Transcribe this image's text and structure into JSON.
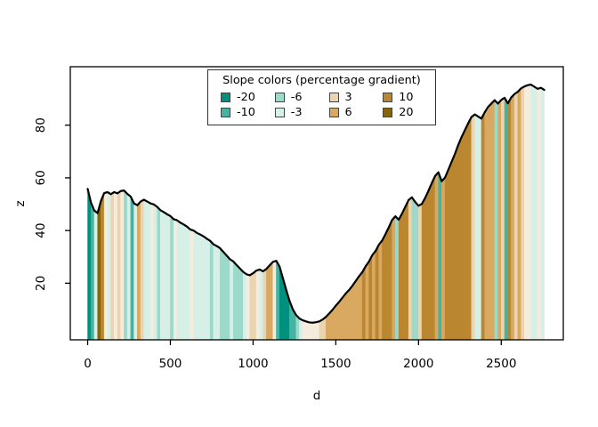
{
  "axes": {
    "x": {
      "label": "d",
      "ticks": [
        "0",
        "500",
        "1000",
        "1500",
        "2000",
        "2500"
      ],
      "tick_values": [
        0,
        500,
        1000,
        1500,
        2000,
        2500
      ]
    },
    "y": {
      "label": "z",
      "ticks": [
        "20",
        "40",
        "60",
        "80"
      ],
      "tick_values": [
        20,
        40,
        60,
        80
      ]
    }
  },
  "legend": {
    "title": "Slope colors (percentage gradient)",
    "entries": [
      {
        "label": "-20",
        "color": "#00917E"
      },
      {
        "label": "-10",
        "color": "#45B3A2"
      },
      {
        "label": "-6",
        "color": "#9BDACB"
      },
      {
        "label": "-3",
        "color": "#D6F0E8"
      },
      {
        "label": "3",
        "color": "#EAD5B0"
      },
      {
        "label": "6",
        "color": "#D9A861"
      },
      {
        "label": "10",
        "color": "#BA8730"
      },
      {
        "label": "20",
        "color": "#8A6508"
      }
    ]
  },
  "chart_data": {
    "type": "area",
    "title": "",
    "xlabel": "d",
    "ylabel": "z",
    "xlim": [
      -105,
      2875
    ],
    "ylim": [
      -1.5,
      102.2
    ],
    "grid": false,
    "legend_position": "top-center-inside",
    "line_color": "#000000",
    "frame_color": "#000000",
    "slope_breaks_percent": [
      -20,
      -10,
      -6,
      -3,
      3,
      6,
      10,
      20
    ],
    "palette": [
      "#00917E",
      "#45B3A2",
      "#9BDACB",
      "#D6F0E8",
      "#F6ECDE",
      "#EAD5B0",
      "#D9A861",
      "#BA8730",
      "#8A6508"
    ],
    "x": [
      0,
      20,
      40,
      60,
      80,
      100,
      120,
      140,
      160,
      180,
      200,
      220,
      240,
      260,
      280,
      300,
      320,
      340,
      360,
      380,
      400,
      420,
      440,
      460,
      480,
      500,
      520,
      540,
      560,
      580,
      600,
      620,
      640,
      660,
      680,
      700,
      720,
      740,
      760,
      780,
      800,
      820,
      840,
      860,
      880,
      900,
      920,
      940,
      960,
      980,
      1000,
      1020,
      1040,
      1060,
      1080,
      1100,
      1120,
      1140,
      1160,
      1180,
      1200,
      1220,
      1240,
      1260,
      1280,
      1300,
      1320,
      1340,
      1360,
      1380,
      1400,
      1420,
      1440,
      1460,
      1480,
      1500,
      1520,
      1540,
      1560,
      1580,
      1600,
      1620,
      1640,
      1660,
      1680,
      1700,
      1720,
      1740,
      1760,
      1780,
      1800,
      1820,
      1840,
      1860,
      1880,
      1900,
      1920,
      1940,
      1960,
      1980,
      2000,
      2020,
      2040,
      2060,
      2080,
      2100,
      2120,
      2140,
      2160,
      2180,
      2200,
      2220,
      2240,
      2260,
      2280,
      2300,
      2320,
      2340,
      2360,
      2380,
      2400,
      2420,
      2440,
      2460,
      2480,
      2500,
      2520,
      2540,
      2560,
      2580,
      2600,
      2620,
      2640,
      2660,
      2680,
      2700,
      2720,
      2740,
      2760
    ],
    "z": [
      55.8,
      50.6,
      47.6,
      46.6,
      51.2,
      54.2,
      54.6,
      53.8,
      54.6,
      54.1,
      55.0,
      55.2,
      53.9,
      52.9,
      50.3,
      49.6,
      51.0,
      51.7,
      51.0,
      50.3,
      49.9,
      49.0,
      47.7,
      47.0,
      46.2,
      45.5,
      44.3,
      43.9,
      43.0,
      42.3,
      41.5,
      40.4,
      40.0,
      39.1,
      38.5,
      37.8,
      36.9,
      36.1,
      34.8,
      34.1,
      33.3,
      31.9,
      30.5,
      29.1,
      28.3,
      26.9,
      25.6,
      24.3,
      23.4,
      23.0,
      23.8,
      24.8,
      25.2,
      24.5,
      25.4,
      26.8,
      28.1,
      28.5,
      26.3,
      21.9,
      17.5,
      13.3,
      10.1,
      7.9,
      6.6,
      5.9,
      5.5,
      5.1,
      5.0,
      5.2,
      5.5,
      6.2,
      7.2,
      8.5,
      9.9,
      11.5,
      12.9,
      14.5,
      16.1,
      17.4,
      19.0,
      20.8,
      22.6,
      24.2,
      26.4,
      28.2,
      30.6,
      32.2,
      34.6,
      36.2,
      38.6,
      41.2,
      44.0,
      45.4,
      44.1,
      46.4,
      49.0,
      51.6,
      52.6,
      50.8,
      49.4,
      50.1,
      52.4,
      55.1,
      58.0,
      60.7,
      62.1,
      58.7,
      60.1,
      63.1,
      66.1,
      69.1,
      72.5,
      75.5,
      78.1,
      80.7,
      83.1,
      84.1,
      83.3,
      82.5,
      84.9,
      86.9,
      88.2,
      89.5,
      88.2,
      89.6,
      90.4,
      88.3,
      90.5,
      91.8,
      92.7,
      94.0,
      94.7,
      95.2,
      95.4,
      94.6,
      93.8,
      94.2,
      93.4
    ]
  }
}
